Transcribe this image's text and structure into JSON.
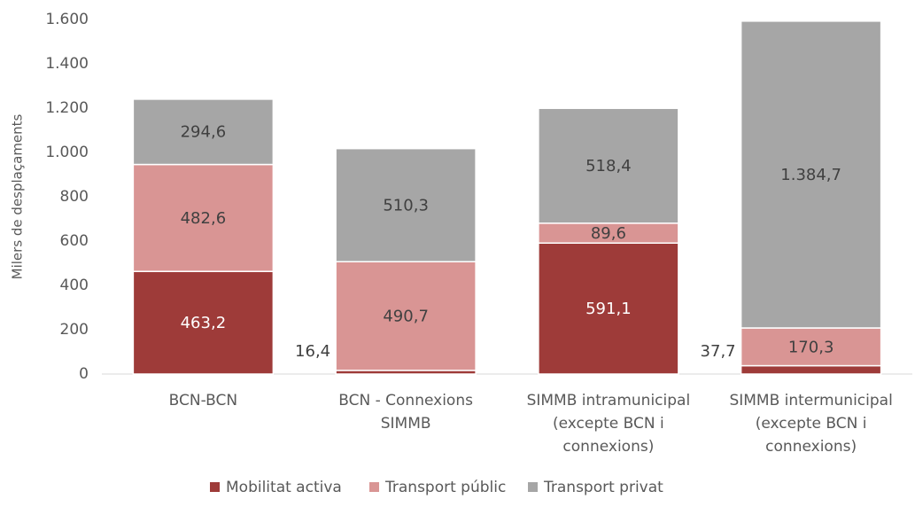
{
  "chart_data": {
    "type": "stacked_bar",
    "y_label": "Milers de desplaçaments",
    "categories": [
      "BCN-BCN",
      "BCN - Connexions\nSIMMB",
      "SIMMB intramunicipal\n(excepte BCN i\nconnexions)",
      "SIMMB intermunicipal\n(excepte BCN i\nconnexions)"
    ],
    "series": [
      {
        "name": "Mobilitat activa",
        "color": "#9e3b39",
        "values": [
          463.2,
          16.4,
          591.1,
          37.7
        ],
        "value_labels": [
          "463,2",
          "16,4",
          "591,1",
          "37,7"
        ]
      },
      {
        "name": "Transport públic",
        "color": "#d99594",
        "values": [
          482.6,
          490.7,
          89.6,
          170.3
        ],
        "value_labels": [
          "482,6",
          "490,7",
          "89,6",
          "170,3"
        ]
      },
      {
        "name": "Transport privat",
        "color": "#a6a6a6",
        "values": [
          294.6,
          510.3,
          518.4,
          1384.7
        ],
        "value_labels": [
          "294,6",
          "510,3",
          "518,4",
          "1.384,7"
        ]
      }
    ],
    "ylim": [
      0,
      1600
    ],
    "yticks": [
      0,
      200,
      400,
      600,
      800,
      {
        "value": 1000,
        "label": "1.000"
      },
      {
        "value": 1200,
        "label": "1.200"
      },
      {
        "value": 1400,
        "label": "1.400"
      },
      {
        "value": 1600,
        "label": "1.600"
      }
    ],
    "legend": "bottom"
  }
}
